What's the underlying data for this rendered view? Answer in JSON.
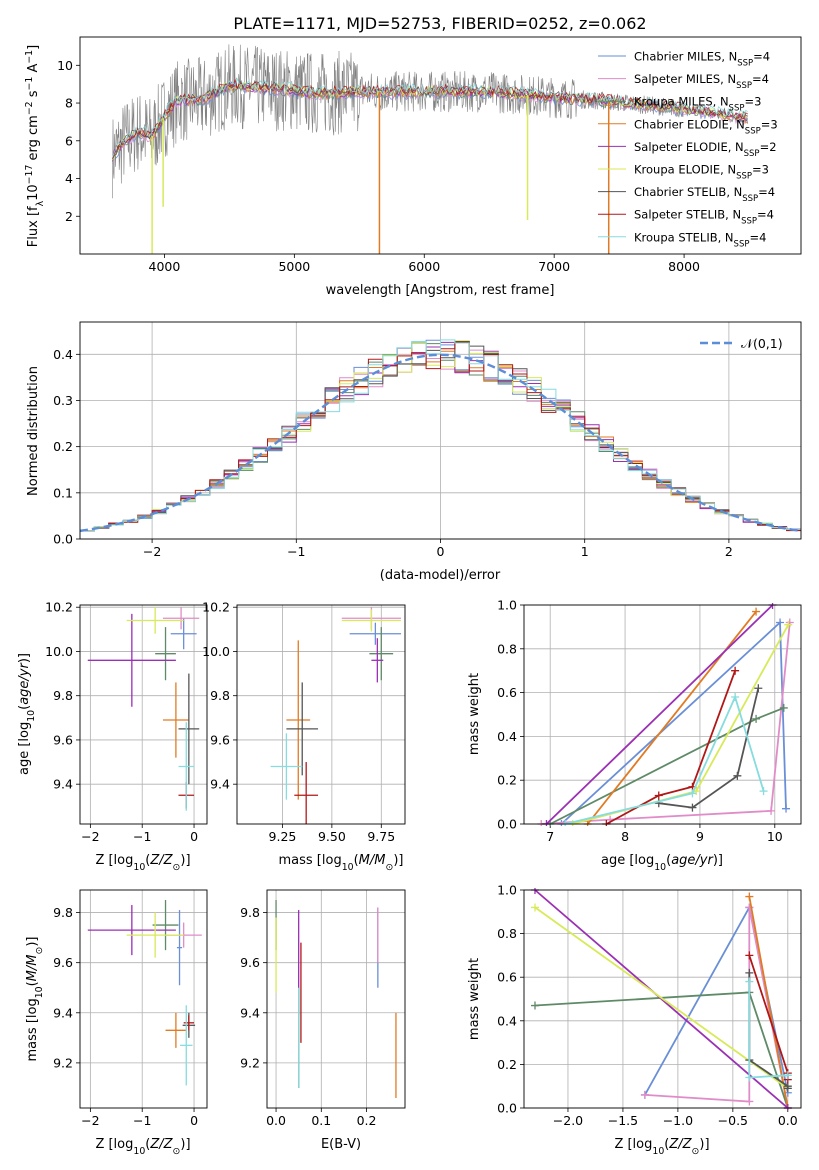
{
  "figure_title": "PLATE=1171, MJD=52753, FIBERID=0252, z=0.062",
  "palette": {
    "obs": "#808080",
    "Chabrier MILES": "#6a8fd6",
    "Salpeter MILES": "#e08cc8",
    "Kroupa MILES": "#5f8a68",
    "Chabrier ELODIE": "#e07b24",
    "Salpeter ELODIE": "#9b30b4",
    "Kroupa ELODIE": "#d8ea5a",
    "Chabrier STELIB": "#555555",
    "Salpeter STELIB": "#b01818",
    "Kroupa STELIB": "#86dcde",
    "normal": "#5b8ed6"
  },
  "chart_data": [
    {
      "id": "spectrum",
      "type": "line",
      "xlabel": "wavelength [Angstrom, rest frame]",
      "ylabel": "Flux [f_λ10^-17 erg cm^-2 s^-1 A^-1]",
      "xlim": [
        3350,
        8900
      ],
      "ylim": [
        0,
        11.5
      ],
      "xticks": [
        4000,
        5000,
        6000,
        7000,
        8000
      ],
      "yticks": [
        2,
        4,
        6,
        8,
        10
      ],
      "legend_position": "upper right",
      "legend": [
        {
          "label": "Chabrier MILES, N",
          "sub": "SSP",
          "suffix": "=4"
        },
        {
          "label": "Salpeter MILES, N",
          "sub": "SSP",
          "suffix": "=4"
        },
        {
          "label": "Kroupa MILES, N",
          "sub": "SSP",
          "suffix": "=3"
        },
        {
          "label": "Chabrier ELODIE, N",
          "sub": "SSP",
          "suffix": "=3"
        },
        {
          "label": "Salpeter ELODIE, N",
          "sub": "SSP",
          "suffix": "=2"
        },
        {
          "label": "Kroupa ELODIE, N",
          "sub": "SSP",
          "suffix": "=3"
        },
        {
          "label": "Chabrier STELIB, N",
          "sub": "SSP",
          "suffix": "=4"
        },
        {
          "label": "Salpeter STELIB, N",
          "sub": "SSP",
          "suffix": "=4"
        },
        {
          "label": "Kroupa STELIB, N",
          "sub": "SSP",
          "suffix": "=4"
        }
      ],
      "model_continuum": {
        "x": [
          3600,
          3700,
          3800,
          3900,
          4000,
          4100,
          4300,
          4500,
          4800,
          5200,
          5600,
          6000,
          6500,
          7000,
          7400,
          8000,
          8500
        ],
        "y": [
          5.2,
          6.0,
          6.5,
          6.2,
          7.3,
          8.1,
          8.2,
          8.9,
          8.8,
          8.5,
          8.6,
          8.6,
          8.6,
          8.3,
          8.1,
          7.7,
          7.2
        ]
      },
      "obs_range": [
        3600,
        8000
      ],
      "model_dips": [
        {
          "x": 3905,
          "y": 0.0,
          "series": "Kroupa ELODIE"
        },
        {
          "x": 3990,
          "y": 2.5,
          "series": "Kroupa ELODIE"
        },
        {
          "x": 5655,
          "y": 0.0,
          "series": "Chabrier ELODIE"
        },
        {
          "x": 6795,
          "y": 1.8,
          "series": "Kroupa ELODIE"
        },
        {
          "x": 7420,
          "y": 0.0,
          "series": "Chabrier ELODIE"
        }
      ]
    },
    {
      "id": "residuals",
      "type": "histogram",
      "xlabel": "(data-model)/error",
      "ylabel": "Normed distribution",
      "xlim": [
        -2.5,
        2.5
      ],
      "ylim": [
        0,
        0.47
      ],
      "xticks": [
        -2,
        -1,
        0,
        1,
        2
      ],
      "yticks": [
        0.0,
        0.1,
        0.2,
        0.3,
        0.4
      ],
      "grid": true,
      "legend_position": "upper right",
      "bins": {
        "start": -2.5,
        "width": 0.1,
        "count": 50
      },
      "reference_curve": {
        "label": "𝒩(0,1)",
        "mean": 0,
        "sigma": 1
      }
    },
    {
      "id": "age_vs_Z",
      "type": "errorbar",
      "xlabel": "Z [log10(Z/Z☉)]",
      "ylabel": "age  [log10(age/yr)]",
      "xlim": [
        -2.2,
        0.25
      ],
      "ylim": [
        9.22,
        10.21
      ],
      "xticks": [
        -2,
        -1,
        0
      ],
      "yticks": [
        9.4,
        9.6,
        9.8,
        10.0,
        10.2
      ],
      "grid": true,
      "points": [
        {
          "series": "Chabrier MILES",
          "x": -0.2,
          "xerr": 0.25,
          "y": 10.08,
          "yerr": 0.07
        },
        {
          "series": "Salpeter MILES",
          "x": -0.25,
          "xerr": 0.35,
          "y": 10.15,
          "yerr": 0.05
        },
        {
          "series": "Kroupa MILES",
          "x": -0.55,
          "xerr": 0.2,
          "y": 9.99,
          "yerr": 0.12
        },
        {
          "series": "Chabrier ELODIE",
          "x": -0.35,
          "xerr": 0.25,
          "y": 9.69,
          "yerr": 0.17
        },
        {
          "series": "Salpeter ELODIE",
          "x": -1.2,
          "xerr": 0.85,
          "y": 9.96,
          "yerr": 0.21
        },
        {
          "series": "Kroupa ELODIE",
          "x": -0.75,
          "xerr": 0.55,
          "y": 10.14,
          "yerr": 0.06
        },
        {
          "series": "Chabrier STELIB",
          "x": -0.1,
          "xerr": 0.2,
          "y": 9.65,
          "yerr": 0.25
        },
        {
          "series": "Salpeter STELIB",
          "x": -0.15,
          "xerr": 0.15,
          "y": 9.35,
          "yerr": 0.06
        },
        {
          "series": "Kroupa STELIB",
          "x": -0.15,
          "xerr": 0.15,
          "y": 9.48,
          "yerr": 0.2
        }
      ]
    },
    {
      "id": "age_vs_mass",
      "type": "errorbar",
      "xlabel": "mass [log10(M/M☉)]",
      "ylabel": "",
      "xlim": [
        9.02,
        9.87
      ],
      "ylim": [
        9.22,
        10.21
      ],
      "xticks": [
        9.25,
        9.5,
        9.75
      ],
      "yticks": [
        9.4,
        9.6,
        9.8,
        10.0,
        10.2
      ],
      "grid": true,
      "points": [
        {
          "series": "Chabrier MILES",
          "x": 9.72,
          "xerr": 0.13,
          "y": 10.08,
          "yerr": 0.05
        },
        {
          "series": "Salpeter MILES",
          "x": 9.7,
          "xerr": 0.15,
          "y": 10.15,
          "yerr": 0.05
        },
        {
          "series": "Kroupa MILES",
          "x": 9.75,
          "xerr": 0.06,
          "y": 9.99,
          "yerr": 0.12
        },
        {
          "series": "Chabrier ELODIE",
          "x": 9.33,
          "xerr": 0.06,
          "y": 9.69,
          "yerr": 0.36
        },
        {
          "series": "Salpeter ELODIE",
          "x": 9.73,
          "xerr": 0.03,
          "y": 9.96,
          "yerr": 0.1
        },
        {
          "series": "Kroupa ELODIE",
          "x": 9.7,
          "xerr": 0.15,
          "y": 10.14,
          "yerr": 0.05
        },
        {
          "series": "Chabrier STELIB",
          "x": 9.35,
          "xerr": 0.08,
          "y": 9.65,
          "yerr": 0.21
        },
        {
          "series": "Salpeter STELIB",
          "x": 9.37,
          "xerr": 0.06,
          "y": 9.35,
          "yerr": 0.15
        },
        {
          "series": "Kroupa STELIB",
          "x": 9.27,
          "xerr": 0.08,
          "y": 9.48,
          "yerr": 0.15
        }
      ]
    },
    {
      "id": "weight_vs_age",
      "type": "line",
      "xlabel": "age  [log10(age/yr)]",
      "ylabel": "mass weight",
      "xlim": [
        6.65,
        10.35
      ],
      "ylim": [
        0,
        1.0
      ],
      "xticks": [
        7,
        8,
        9,
        10
      ],
      "yticks": [
        0.0,
        0.2,
        0.4,
        0.6,
        0.8,
        1.0
      ],
      "grid": true,
      "series": [
        {
          "name": "Chabrier MILES",
          "points": [
            [
              7.15,
              0.0
            ],
            [
              10.07,
              0.92
            ],
            [
              10.15,
              0.07
            ]
          ]
        },
        {
          "name": "Salpeter MILES",
          "points": [
            [
              6.88,
              0.0
            ],
            [
              7.8,
              0.02
            ],
            [
              9.95,
              0.06
            ],
            [
              10.2,
              0.92
            ]
          ]
        },
        {
          "name": "Kroupa MILES",
          "points": [
            [
              7.0,
              0.0
            ],
            [
              9.75,
              0.48
            ],
            [
              10.12,
              0.53
            ]
          ]
        },
        {
          "name": "Chabrier ELODIE",
          "points": [
            [
              7.5,
              0.0
            ],
            [
              9.75,
              0.97
            ]
          ]
        },
        {
          "name": "Salpeter ELODIE",
          "points": [
            [
              6.95,
              0.0
            ],
            [
              9.97,
              1.0
            ]
          ]
        },
        {
          "name": "Kroupa ELODIE",
          "points": [
            [
              7.3,
              0.0
            ],
            [
              8.95,
              0.15
            ],
            [
              10.18,
              0.91
            ]
          ]
        },
        {
          "name": "Chabrier STELIB",
          "points": [
            [
              8.45,
              0.095
            ],
            [
              8.9,
              0.075
            ],
            [
              9.5,
              0.22
            ],
            [
              9.78,
              0.62
            ]
          ]
        },
        {
          "name": "Salpeter STELIB",
          "points": [
            [
              7.75,
              0.0
            ],
            [
              8.45,
              0.13
            ],
            [
              8.9,
              0.17
            ],
            [
              9.47,
              0.7
            ]
          ]
        },
        {
          "name": "Kroupa STELIB",
          "points": [
            [
              7.2,
              0.0
            ],
            [
              8.9,
              0.14
            ],
            [
              9.47,
              0.58
            ],
            [
              9.85,
              0.15
            ]
          ]
        }
      ]
    },
    {
      "id": "mass_vs_Z",
      "type": "errorbar",
      "xlabel": "Z [log10(Z/Z☉)]",
      "ylabel": "mass [log10(M/M☉)]",
      "xlim": [
        -2.2,
        0.25
      ],
      "ylim": [
        9.02,
        9.89
      ],
      "xticks": [
        -2,
        -1,
        0
      ],
      "yticks": [
        9.2,
        9.4,
        9.6,
        9.8
      ],
      "grid": true,
      "points": [
        {
          "series": "Chabrier MILES",
          "x": -0.28,
          "xerr": 0.05,
          "y": 9.66,
          "yerr": 0.15
        },
        {
          "series": "Salpeter MILES",
          "x": -0.2,
          "xerr": 0.35,
          "y": 9.71,
          "yerr": 0.05
        },
        {
          "series": "Kroupa MILES",
          "x": -0.55,
          "xerr": 0.25,
          "y": 9.75,
          "yerr": 0.1
        },
        {
          "series": "Chabrier ELODIE",
          "x": -0.35,
          "xerr": 0.2,
          "y": 9.33,
          "yerr": 0.07
        },
        {
          "series": "Salpeter ELODIE",
          "x": -1.2,
          "xerr": 0.85,
          "y": 9.73,
          "yerr": 0.1
        },
        {
          "series": "Kroupa ELODIE",
          "x": -0.75,
          "xerr": 0.55,
          "y": 9.71,
          "yerr": 0.09
        },
        {
          "series": "Chabrier STELIB",
          "x": -0.1,
          "xerr": 0.12,
          "y": 9.35,
          "yerr": 0.05
        },
        {
          "series": "Salpeter STELIB",
          "x": -0.1,
          "xerr": 0.1,
          "y": 9.36,
          "yerr": 0.03
        },
        {
          "series": "Kroupa STELIB",
          "x": -0.15,
          "xerr": 0.12,
          "y": 9.27,
          "yerr": 0.16
        }
      ]
    },
    {
      "id": "mass_vs_ebv",
      "type": "errorbar",
      "xlabel": "E(B-V)",
      "ylabel": "",
      "xlim": [
        -0.02,
        0.285
      ],
      "ylim": [
        9.02,
        9.89
      ],
      "xticks": [
        0.0,
        0.1,
        0.2
      ],
      "yticks": [
        9.2,
        9.4,
        9.6,
        9.8
      ],
      "grid": true,
      "points": [
        {
          "series": "Chabrier MILES",
          "x": 0.225,
          "xerr": 0,
          "y": 9.66,
          "yerr": 0.16
        },
        {
          "series": "Salpeter MILES",
          "x": 0.225,
          "xerr": 0,
          "y": 9.71,
          "yerr": 0.11
        },
        {
          "series": "Kroupa MILES",
          "x": 0.0,
          "xerr": 0,
          "y": 9.75,
          "yerr": 0.1
        },
        {
          "series": "Chabrier ELODIE",
          "x": 0.265,
          "xerr": 0,
          "y": 9.23,
          "yerr": 0.17
        },
        {
          "series": "Salpeter ELODIE",
          "x": 0.05,
          "xerr": 0,
          "y": 9.6,
          "yerr": 0.21
        },
        {
          "series": "Kroupa ELODIE",
          "x": 0.0,
          "xerr": 0,
          "y": 9.63,
          "yerr": 0.15
        },
        {
          "series": "Chabrier STELIB",
          "x": 0.05,
          "xerr": 0,
          "y": 9.3,
          "yerr": 0.2
        },
        {
          "series": "Salpeter STELIB",
          "x": 0.055,
          "xerr": 0,
          "y": 9.48,
          "yerr": 0.2
        },
        {
          "series": "Kroupa STELIB",
          "x": 0.05,
          "xerr": 0,
          "y": 9.3,
          "yerr": 0.2
        }
      ]
    },
    {
      "id": "weight_vs_Z",
      "type": "line",
      "xlabel": "Z [log10(Z/Z☉)]",
      "ylabel": "mass weight",
      "xlim": [
        -2.4,
        0.12
      ],
      "ylim": [
        0,
        1.0
      ],
      "xticks": [
        -2.0,
        -1.5,
        -1.0,
        -0.5,
        0.0
      ],
      "yticks": [
        0.0,
        0.2,
        0.4,
        0.6,
        0.8,
        1.0
      ],
      "grid": true,
      "series": [
        {
          "name": "Chabrier MILES",
          "points": [
            [
              -1.3,
              0.06
            ],
            [
              -0.35,
              0.92
            ],
            [
              0.0,
              0.07
            ]
          ]
        },
        {
          "name": "Salpeter MILES",
          "points": [
            [
              -1.3,
              0.06
            ],
            [
              -0.35,
              0.03
            ],
            [
              -0.35,
              0.92
            ],
            [
              0.0,
              0.0
            ]
          ]
        },
        {
          "name": "Kroupa MILES",
          "points": [
            [
              -2.3,
              0.47
            ],
            [
              -0.35,
              0.53
            ],
            [
              0.0,
              0.0
            ]
          ]
        },
        {
          "name": "Chabrier ELODIE",
          "points": [
            [
              -0.35,
              0.97
            ],
            [
              0.0,
              0.0
            ]
          ]
        },
        {
          "name": "Salpeter ELODIE",
          "points": [
            [
              -2.3,
              1.0
            ],
            [
              0.0,
              0.0
            ]
          ]
        },
        {
          "name": "Kroupa ELODIE",
          "points": [
            [
              -2.3,
              0.92
            ],
            [
              0.0,
              0.09
            ]
          ]
        },
        {
          "name": "Chabrier STELIB",
          "points": [
            [
              -0.35,
              0.62
            ],
            [
              -0.35,
              0.22
            ],
            [
              0.0,
              0.1
            ],
            [
              0.0,
              0.09
            ]
          ]
        },
        {
          "name": "Salpeter STELIB",
          "points": [
            [
              -0.35,
              0.7
            ],
            [
              0.0,
              0.16
            ],
            [
              0.0,
              0.13
            ]
          ]
        },
        {
          "name": "Kroupa STELIB",
          "points": [
            [
              -0.35,
              0.58
            ],
            [
              -0.35,
              0.14
            ],
            [
              0.0,
              0.15
            ]
          ]
        }
      ]
    }
  ]
}
